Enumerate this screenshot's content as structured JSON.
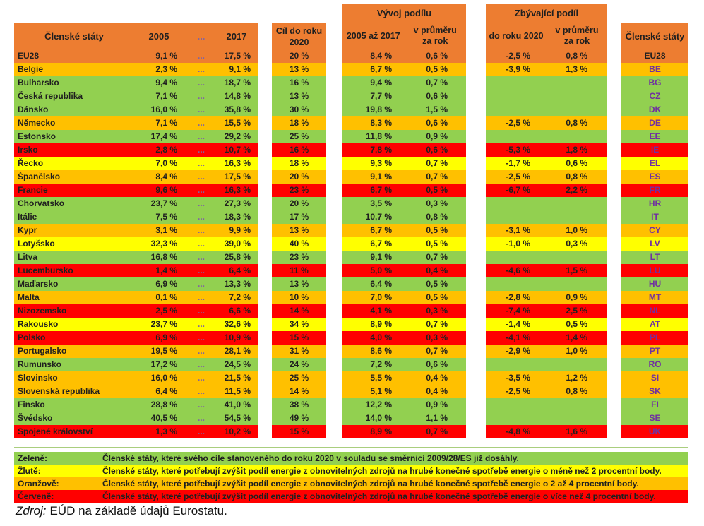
{
  "colors": {
    "header_orange": "#ED7D31",
    "green": "#92D050",
    "yellow": "#FFFF00",
    "orange": "#FFC000",
    "red": "#FF0000",
    "code_purple": "#7030A0",
    "dots_purple": "#8064A2"
  },
  "table": {
    "header": {
      "states": "Členské státy",
      "y2005": "2005",
      "y2017": "2017",
      "target_l1": "Cíl do roku",
      "target_l2": "2020",
      "dev_group": "Vývoj podílu",
      "dev_col1": "2005 až 2017",
      "rem_group": "Zbývající podíl",
      "rem_col1": "do roku 2020",
      "avg_l1": "v průměru",
      "avg_l2": "za rok",
      "states_right": "Členské státy"
    }
  },
  "chart_data": {
    "type": "table",
    "dots": "...",
    "columns": [
      "Členské státy",
      "2005",
      "...",
      "2017",
      "Cíl do roku 2020",
      "Vývoj podílu 2005 až 2017",
      "Vývoj podílu v průměru za rok",
      "Zbývající podíl do roku 2020",
      "Zbývající podíl v průměru za rok",
      "Členské státy (kód)"
    ],
    "eu28": {
      "name": "EU28",
      "color": "header_orange",
      "v2005": "9,1 %",
      "v2017": "17,5 %",
      "target": "20 %",
      "dev_2005_2017": "8,4 %",
      "dev_avg": "0,6 %",
      "rem_2020": "-2,5 %",
      "rem_avg": "0,8 %",
      "code": "EU28"
    },
    "rows": [
      {
        "name": "Belgie",
        "color": "orange",
        "v2005": "2,3 %",
        "v2017": "9,1 %",
        "target": "13 %",
        "dev_2005_2017": "6,7 %",
        "dev_avg": "0,5 %",
        "rem_2020": "-3,9 %",
        "rem_avg": "1,3 %",
        "code": "BE"
      },
      {
        "name": "Bulharsko",
        "color": "green",
        "v2005": "9,4 %",
        "v2017": "18,7 %",
        "target": "16 %",
        "dev_2005_2017": "9,4 %",
        "dev_avg": "0,7 %",
        "rem_2020": "",
        "rem_avg": "",
        "code": "BG"
      },
      {
        "name": "Česká republika",
        "color": "green",
        "v2005": "7,1 %",
        "v2017": "14,8 %",
        "target": "13 %",
        "dev_2005_2017": "7,7 %",
        "dev_avg": "0,6 %",
        "rem_2020": "",
        "rem_avg": "",
        "code": "CZ"
      },
      {
        "name": "Dánsko",
        "color": "green",
        "v2005": "16,0 %",
        "v2017": "35,8 %",
        "target": "30 %",
        "dev_2005_2017": "19,8 %",
        "dev_avg": "1,5 %",
        "rem_2020": "",
        "rem_avg": "",
        "code": "DK"
      },
      {
        "name": "Německo",
        "color": "orange",
        "v2005": "7,1 %",
        "v2017": "15,5 %",
        "target": "18 %",
        "dev_2005_2017": "8,3 %",
        "dev_avg": "0,6 %",
        "rem_2020": "-2,5 %",
        "rem_avg": "0,8 %",
        "code": "DE"
      },
      {
        "name": "Estonsko",
        "color": "green",
        "v2005": "17,4 %",
        "v2017": "29,2 %",
        "target": "25 %",
        "dev_2005_2017": "11,8 %",
        "dev_avg": "0,9 %",
        "rem_2020": "",
        "rem_avg": "",
        "code": "EE"
      },
      {
        "name": "Irsko",
        "color": "red",
        "v2005": "2,8 %",
        "v2017": "10,7 %",
        "target": "16 %",
        "dev_2005_2017": "7,8 %",
        "dev_avg": "0,6 %",
        "rem_2020": "-5,3 %",
        "rem_avg": "1,8 %",
        "code": "IE"
      },
      {
        "name": "Řecko",
        "color": "yellow",
        "v2005": "7,0 %",
        "v2017": "16,3 %",
        "target": "18 %",
        "dev_2005_2017": "9,3 %",
        "dev_avg": "0,7 %",
        "rem_2020": "-1,7 %",
        "rem_avg": "0,6 %",
        "code": "EL"
      },
      {
        "name": "Španělsko",
        "color": "orange",
        "v2005": "8,4 %",
        "v2017": "17,5 %",
        "target": "20 %",
        "dev_2005_2017": "9,1 %",
        "dev_avg": "0,7 %",
        "rem_2020": "-2,5 %",
        "rem_avg": "0,8 %",
        "code": "ES"
      },
      {
        "name": "Francie",
        "color": "red",
        "v2005": "9,6 %",
        "v2017": "16,3 %",
        "target": "23 %",
        "dev_2005_2017": "6,7 %",
        "dev_avg": "0,5 %",
        "rem_2020": "-6,7 %",
        "rem_avg": "2,2 %",
        "code": "FR"
      },
      {
        "name": "Chorvatsko",
        "color": "green",
        "v2005": "23,7 %",
        "v2017": "27,3 %",
        "target": "20 %",
        "dev_2005_2017": "3,5 %",
        "dev_avg": "0,3 %",
        "rem_2020": "",
        "rem_avg": "",
        "code": "HR"
      },
      {
        "name": "Itálie",
        "color": "green",
        "v2005": "7,5 %",
        "v2017": "18,3 %",
        "target": "17 %",
        "dev_2005_2017": "10,7 %",
        "dev_avg": "0,8 %",
        "rem_2020": "",
        "rem_avg": "",
        "code": "IT"
      },
      {
        "name": "Kypr",
        "color": "orange",
        "v2005": "3,1 %",
        "v2017": "9,9 %",
        "target": "13 %",
        "dev_2005_2017": "6,7 %",
        "dev_avg": "0,5 %",
        "rem_2020": "-3,1 %",
        "rem_avg": "1,0 %",
        "code": "CY"
      },
      {
        "name": "Lotyšsko",
        "color": "yellow",
        "v2005": "32,3 %",
        "v2017": "39,0 %",
        "target": "40 %",
        "dev_2005_2017": "6,7 %",
        "dev_avg": "0,5 %",
        "rem_2020": "-1,0 %",
        "rem_avg": "0,3 %",
        "code": "LV"
      },
      {
        "name": "Litva",
        "color": "green",
        "v2005": "16,8 %",
        "v2017": "25,8 %",
        "target": "23 %",
        "dev_2005_2017": "9,1 %",
        "dev_avg": "0,7 %",
        "rem_2020": "",
        "rem_avg": "",
        "code": "LT"
      },
      {
        "name": "Lucembursko",
        "color": "red",
        "v2005": "1,4 %",
        "v2017": "6,4 %",
        "target": "11 %",
        "dev_2005_2017": "5,0 %",
        "dev_avg": "0,4 %",
        "rem_2020": "-4,6 %",
        "rem_avg": "1,5 %",
        "code": "LU"
      },
      {
        "name": "Maďarsko",
        "color": "green",
        "v2005": "6,9 %",
        "v2017": "13,3 %",
        "target": "13 %",
        "dev_2005_2017": "6,4 %",
        "dev_avg": "0,5 %",
        "rem_2020": "",
        "rem_avg": "",
        "code": "HU"
      },
      {
        "name": "Malta",
        "color": "orange",
        "v2005": "0,1 %",
        "v2017": "7,2 %",
        "target": "10 %",
        "dev_2005_2017": "7,0 %",
        "dev_avg": "0,5 %",
        "rem_2020": "-2,8 %",
        "rem_avg": "0,9 %",
        "code": "MT"
      },
      {
        "name": "Nizozemsko",
        "color": "red",
        "v2005": "2,5 %",
        "v2017": "6,6 %",
        "target": "14 %",
        "dev_2005_2017": "4,1 %",
        "dev_avg": "0,3 %",
        "rem_2020": "-7,4 %",
        "rem_avg": "2,5 %",
        "code": "NL"
      },
      {
        "name": "Rakousko",
        "color": "yellow",
        "v2005": "23,7 %",
        "v2017": "32,6 %",
        "target": "34 %",
        "dev_2005_2017": "8,9 %",
        "dev_avg": "0,7 %",
        "rem_2020": "-1,4 %",
        "rem_avg": "0,5 %",
        "code": "AT"
      },
      {
        "name": "Polsko",
        "color": "red",
        "v2005": "6,9 %",
        "v2017": "10,9 %",
        "target": "15 %",
        "dev_2005_2017": "4,0 %",
        "dev_avg": "0,3 %",
        "rem_2020": "-4,1 %",
        "rem_avg": "1,4 %",
        "code": "PL"
      },
      {
        "name": "Portugalsko",
        "color": "orange",
        "v2005": "19,5 %",
        "v2017": "28,1 %",
        "target": "31 %",
        "dev_2005_2017": "8,6 %",
        "dev_avg": "0,7 %",
        "rem_2020": "-2,9 %",
        "rem_avg": "1,0 %",
        "code": "PT"
      },
      {
        "name": "Rumunsko",
        "color": "green",
        "v2005": "17,2 %",
        "v2017": "24,5 %",
        "target": "24 %",
        "dev_2005_2017": "7,2 %",
        "dev_avg": "0,6 %",
        "rem_2020": "",
        "rem_avg": "",
        "code": "RO"
      },
      {
        "name": "Slovinsko",
        "color": "orange",
        "v2005": "16,0 %",
        "v2017": "21,5 %",
        "target": "25 %",
        "dev_2005_2017": "5,5 %",
        "dev_avg": "0,4 %",
        "rem_2020": "-3,5 %",
        "rem_avg": "1,2 %",
        "code": "SI"
      },
      {
        "name": "Slovenská republika",
        "color": "orange",
        "v2005": "6,4 %",
        "v2017": "11,5 %",
        "target": "14 %",
        "dev_2005_2017": "5,1 %",
        "dev_avg": "0,4 %",
        "rem_2020": "-2,5 %",
        "rem_avg": "0,8 %",
        "code": "SK"
      },
      {
        "name": "Finsko",
        "color": "green",
        "v2005": "28,8 %",
        "v2017": "41,0 %",
        "target": "38 %",
        "dev_2005_2017": "12,2 %",
        "dev_avg": "0,9 %",
        "rem_2020": "",
        "rem_avg": "",
        "code": "FI"
      },
      {
        "name": "Švédsko",
        "color": "green",
        "v2005": "40,5 %",
        "v2017": "54,5 %",
        "target": "49 %",
        "dev_2005_2017": "14,0 %",
        "dev_avg": "1,1 %",
        "rem_2020": "",
        "rem_avg": "",
        "code": "SE"
      },
      {
        "name": "Spojené království",
        "color": "red",
        "v2005": "1,3 %",
        "v2017": "10,2 %",
        "target": "15 %",
        "dev_2005_2017": "8,9 %",
        "dev_avg": "0,7 %",
        "rem_2020": "-4,8 %",
        "rem_avg": "1,6 %",
        "code": "UK"
      }
    ]
  },
  "legend": {
    "items": [
      {
        "label": "Zeleně:",
        "color": "green",
        "text": "Členské státy, které svého cíle stanoveného do roku 2020 v souladu se směrnicí 2009/28/ES již dosáhly."
      },
      {
        "label": "Žlutě:",
        "color": "yellow",
        "text": "Členské státy, které potřebují zvýšit podíl energie z obnovitelných zdrojů na hrubé konečné spotřebě energie o méně než 2 procentní body."
      },
      {
        "label": "Oranžově:",
        "color": "orange",
        "text": "Členské státy, které potřebují zvýšit podíl energie z obnovitelných zdrojů na hrubé konečné spotřebě energie o 2 až 4 procentní body."
      },
      {
        "label": "Červeně:",
        "color": "red",
        "text": "Členské státy, které potřebují zvýšit podíl energie z obnovitelných zdrojů na hrubé konečné spotřebě energie o více než 4 procentní body."
      }
    ]
  },
  "source": {
    "label": "Zdroj:",
    "text": "EÚD na základě údajů Eurostatu."
  }
}
